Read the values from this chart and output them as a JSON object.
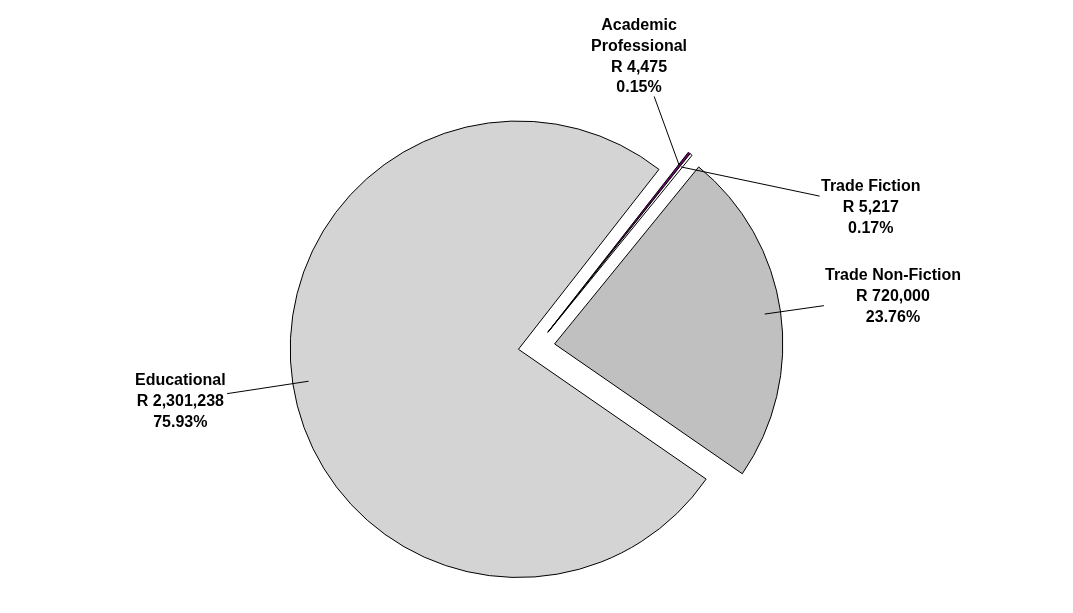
{
  "chart_data": {
    "type": "pie",
    "categories": [
      "Academic Professional",
      "Trade Fiction",
      "Trade Non-Fiction",
      "Educational"
    ],
    "values": [
      4475,
      5217,
      720000,
      2301238
    ],
    "colors": [
      "#800080",
      "#ffffff",
      "#c0c0c0",
      "#d4d4d4"
    ],
    "value_labels": [
      "R 4,475\n0.15%",
      "R 5,217\n0.17%",
      "R 720,000\n23.76%",
      "R 2,301,238\n75.93%"
    ],
    "legend": false
  }
}
